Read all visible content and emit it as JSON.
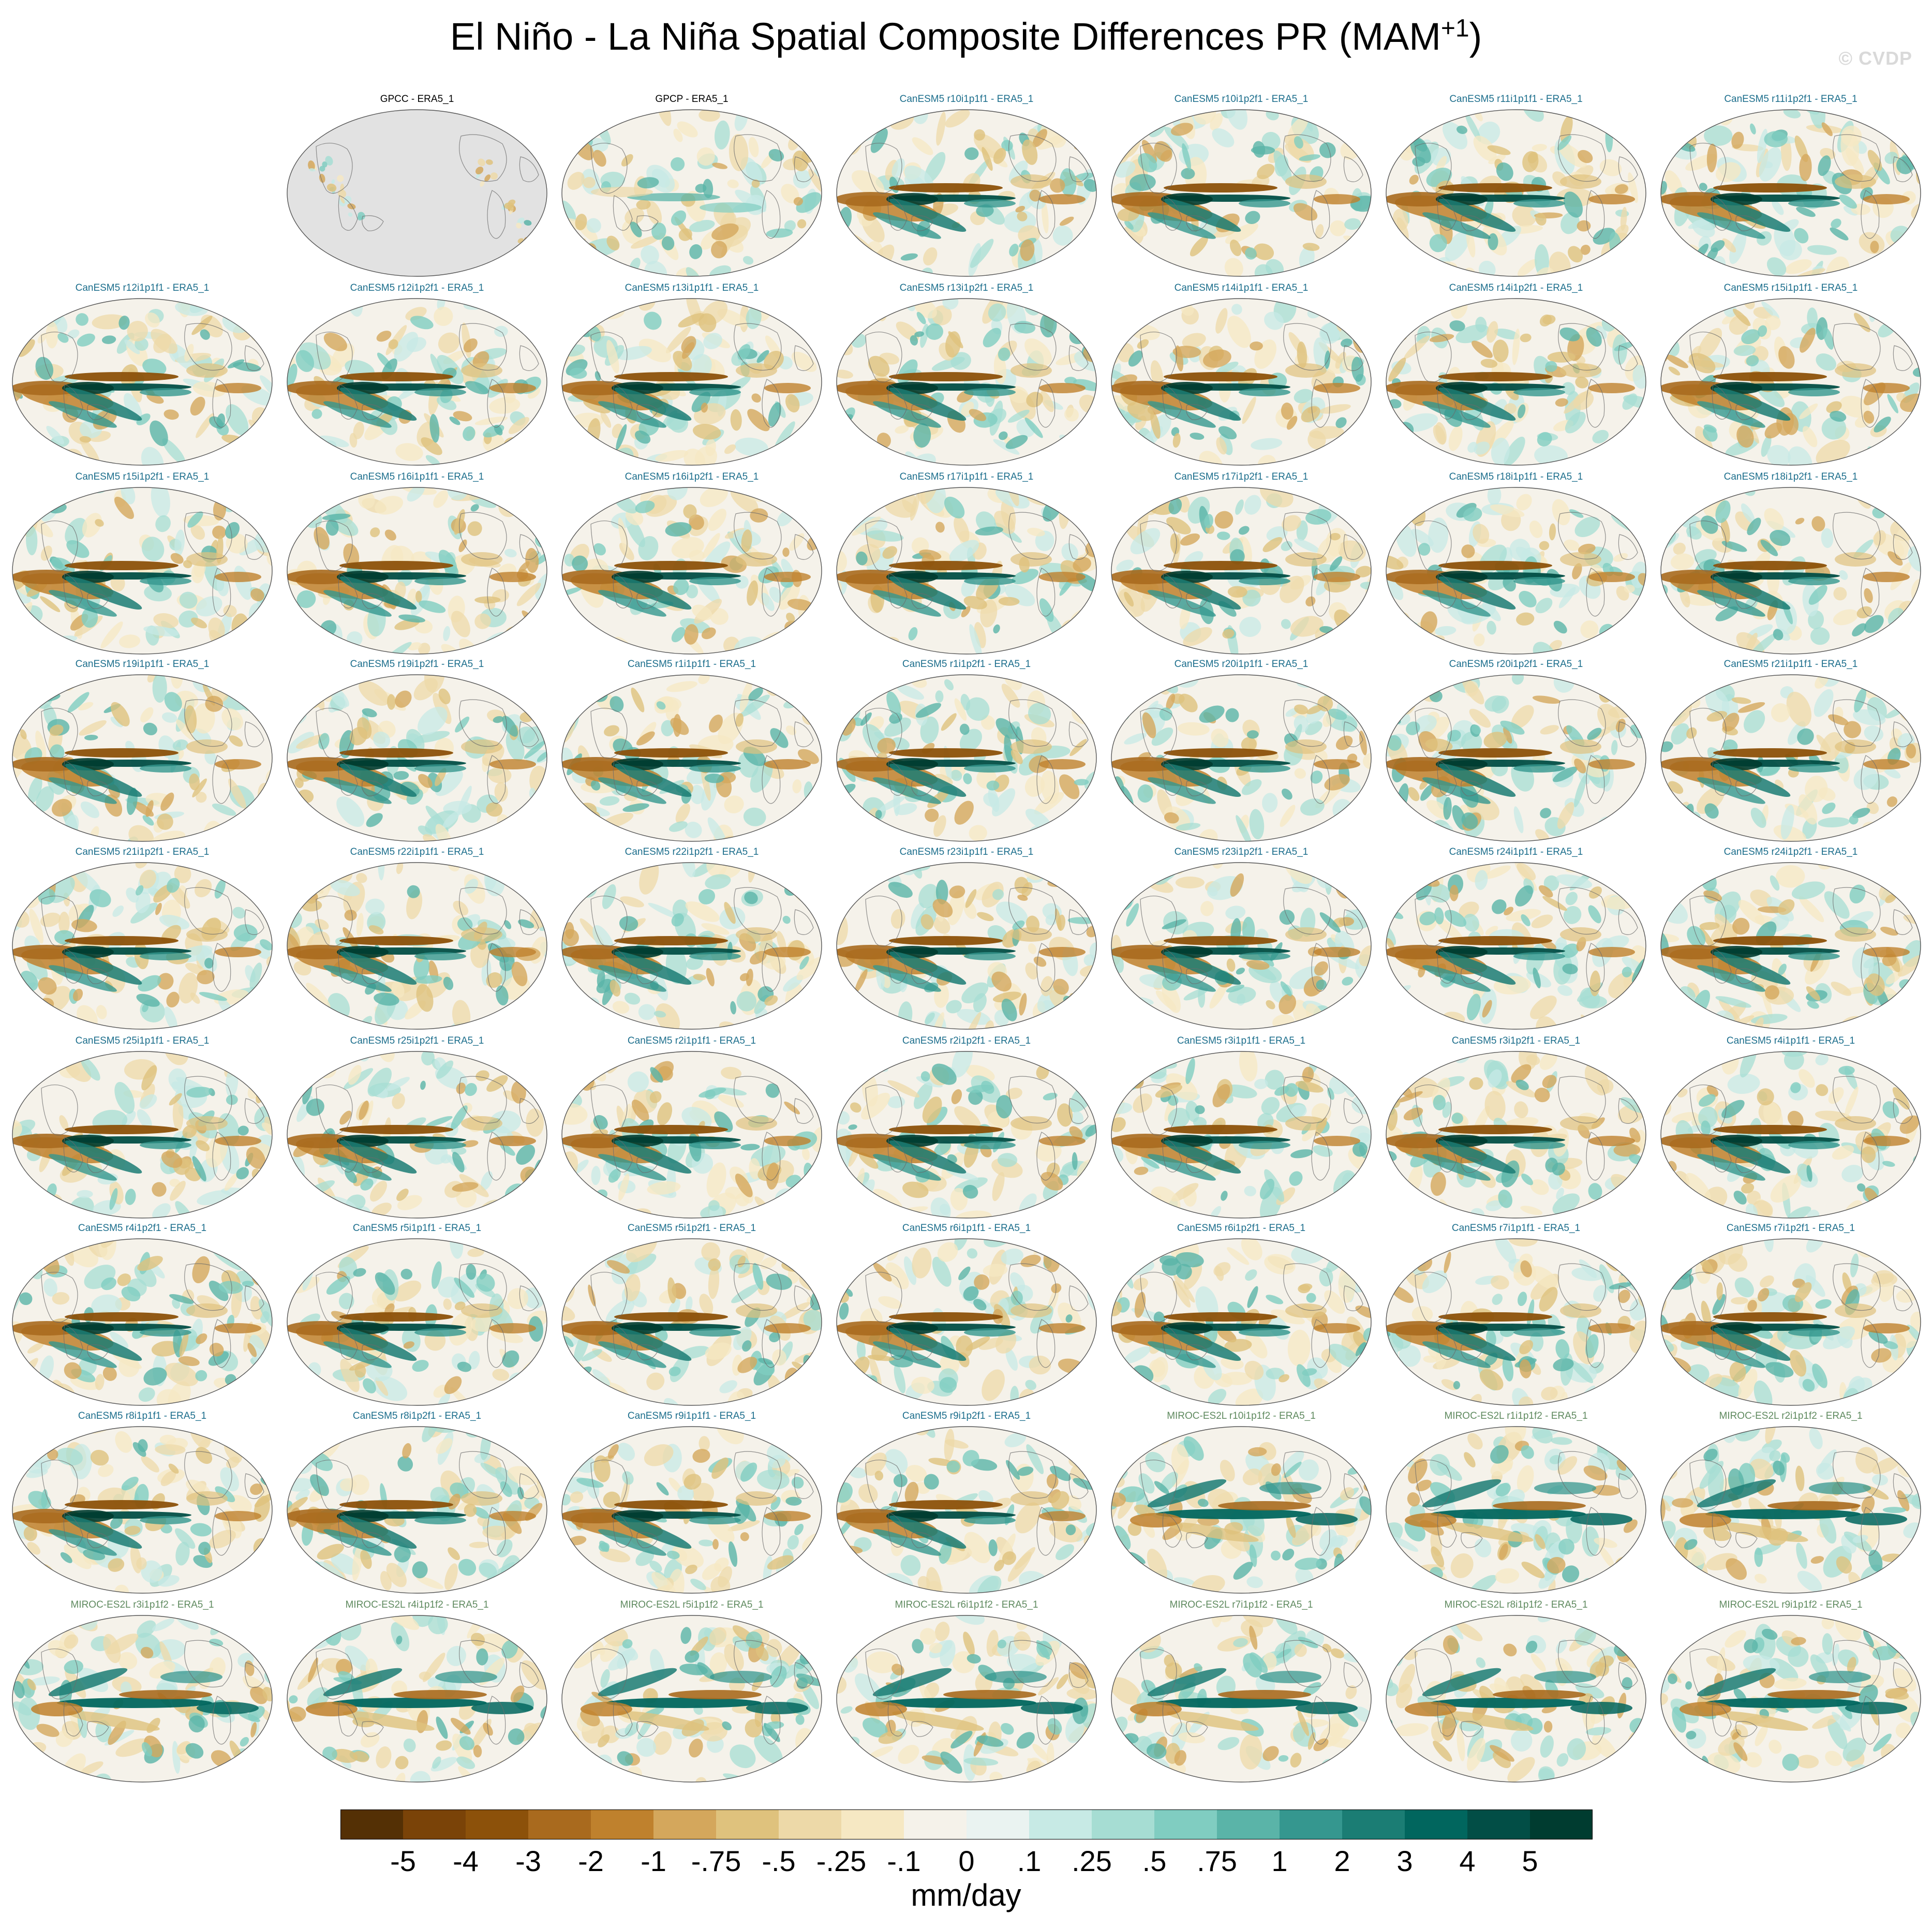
{
  "figure": {
    "title_main": "El Niño - La Niña Spatial Composite Differences PR (MAM",
    "title_sup": "+1",
    "title_close": ")",
    "watermark": "© CVDP"
  },
  "colors": {
    "obs_label": "#000000",
    "canesm_label": "#1c6e8c",
    "miroc_label": "#5f8a5f",
    "map_fill_obs_masked": "#e2e2e2",
    "coastline": "#6b6b6b",
    "palette": [
      "#543005",
      "#7a4308",
      "#8c510a",
      "#a96a1e",
      "#bf812d",
      "#d4a75c",
      "#dfc27d",
      "#edd9a8",
      "#f6e8c3",
      "#f5f2ea",
      "#eaf3f1",
      "#c7eae5",
      "#a6ddd3",
      "#80cdc1",
      "#5ab4a8",
      "#35978f",
      "#1b7d74",
      "#01665e",
      "#024e46",
      "#003c30"
    ]
  },
  "panels": [
    {
      "label": "GPCC - ERA5_1",
      "group": "obs",
      "kind": "gpcc",
      "seed": 1
    },
    {
      "label": "GPCP - ERA5_1",
      "group": "obs",
      "kind": "gpcp",
      "seed": 2
    },
    {
      "label": "CanESM5 r10i1p1f1 - ERA5_1",
      "group": "canesm",
      "kind": "canesm",
      "seed": 3
    },
    {
      "label": "CanESM5 r10i1p2f1 - ERA5_1",
      "group": "canesm",
      "kind": "canesm",
      "seed": 4
    },
    {
      "label": "CanESM5 r11i1p1f1 - ERA5_1",
      "group": "canesm",
      "kind": "canesm",
      "seed": 5
    },
    {
      "label": "CanESM5 r11i1p2f1 - ERA5_1",
      "group": "canesm",
      "kind": "canesm",
      "seed": 6
    },
    {
      "label": "CanESM5 r12i1p1f1 - ERA5_1",
      "group": "canesm",
      "kind": "canesm",
      "seed": 7
    },
    {
      "label": "CanESM5 r12i1p2f1 - ERA5_1",
      "group": "canesm",
      "kind": "canesm",
      "seed": 8
    },
    {
      "label": "CanESM5 r13i1p1f1 - ERA5_1",
      "group": "canesm",
      "kind": "canesm",
      "seed": 9
    },
    {
      "label": "CanESM5 r13i1p2f1 - ERA5_1",
      "group": "canesm",
      "kind": "canesm",
      "seed": 10
    },
    {
      "label": "CanESM5 r14i1p1f1 - ERA5_1",
      "group": "canesm",
      "kind": "canesm",
      "seed": 11
    },
    {
      "label": "CanESM5 r14i1p2f1 - ERA5_1",
      "group": "canesm",
      "kind": "canesm",
      "seed": 12
    },
    {
      "label": "CanESM5 r15i1p1f1 - ERA5_1",
      "group": "canesm",
      "kind": "canesm",
      "seed": 13
    },
    {
      "label": "CanESM5 r15i1p2f1 - ERA5_1",
      "group": "canesm",
      "kind": "canesm",
      "seed": 14
    },
    {
      "label": "CanESM5 r16i1p1f1 - ERA5_1",
      "group": "canesm",
      "kind": "canesm",
      "seed": 15
    },
    {
      "label": "CanESM5 r16i1p2f1 - ERA5_1",
      "group": "canesm",
      "kind": "canesm",
      "seed": 16
    },
    {
      "label": "CanESM5 r17i1p1f1 - ERA5_1",
      "group": "canesm",
      "kind": "canesm",
      "seed": 17
    },
    {
      "label": "CanESM5 r17i1p2f1 - ERA5_1",
      "group": "canesm",
      "kind": "canesm",
      "seed": 18
    },
    {
      "label": "CanESM5 r18i1p1f1 - ERA5_1",
      "group": "canesm",
      "kind": "canesm",
      "seed": 19
    },
    {
      "label": "CanESM5 r18i1p2f1 - ERA5_1",
      "group": "canesm",
      "kind": "canesm",
      "seed": 20
    },
    {
      "label": "CanESM5 r19i1p1f1 - ERA5_1",
      "group": "canesm",
      "kind": "canesm",
      "seed": 21
    },
    {
      "label": "CanESM5 r19i1p2f1 - ERA5_1",
      "group": "canesm",
      "kind": "canesm",
      "seed": 22
    },
    {
      "label": "CanESM5 r1i1p1f1 - ERA5_1",
      "group": "canesm",
      "kind": "canesm",
      "seed": 23
    },
    {
      "label": "CanESM5 r1i1p2f1 - ERA5_1",
      "group": "canesm",
      "kind": "canesm",
      "seed": 24
    },
    {
      "label": "CanESM5 r20i1p1f1 - ERA5_1",
      "group": "canesm",
      "kind": "canesm",
      "seed": 25
    },
    {
      "label": "CanESM5 r20i1p2f1 - ERA5_1",
      "group": "canesm",
      "kind": "canesm",
      "seed": 26
    },
    {
      "label": "CanESM5 r21i1p1f1 - ERA5_1",
      "group": "canesm",
      "kind": "canesm",
      "seed": 27
    },
    {
      "label": "CanESM5 r21i1p2f1 - ERA5_1",
      "group": "canesm",
      "kind": "canesm",
      "seed": 28
    },
    {
      "label": "CanESM5 r22i1p1f1 - ERA5_1",
      "group": "canesm",
      "kind": "canesm",
      "seed": 29
    },
    {
      "label": "CanESM5 r22i1p2f1 - ERA5_1",
      "group": "canesm",
      "kind": "canesm",
      "seed": 30
    },
    {
      "label": "CanESM5 r23i1p1f1 - ERA5_1",
      "group": "canesm",
      "kind": "canesm",
      "seed": 31
    },
    {
      "label": "CanESM5 r23i1p2f1 - ERA5_1",
      "group": "canesm",
      "kind": "canesm",
      "seed": 32
    },
    {
      "label": "CanESM5 r24i1p1f1 - ERA5_1",
      "group": "canesm",
      "kind": "canesm",
      "seed": 33
    },
    {
      "label": "CanESM5 r24i1p2f1 - ERA5_1",
      "group": "canesm",
      "kind": "canesm",
      "seed": 34
    },
    {
      "label": "CanESM5 r25i1p1f1 - ERA5_1",
      "group": "canesm",
      "kind": "canesm",
      "seed": 35
    },
    {
      "label": "CanESM5 r25i1p2f1 - ERA5_1",
      "group": "canesm",
      "kind": "canesm",
      "seed": 36
    },
    {
      "label": "CanESM5 r2i1p1f1 - ERA5_1",
      "group": "canesm",
      "kind": "canesm",
      "seed": 37
    },
    {
      "label": "CanESM5 r2i1p2f1 - ERA5_1",
      "group": "canesm",
      "kind": "canesm",
      "seed": 38
    },
    {
      "label": "CanESM5 r3i1p1f1 - ERA5_1",
      "group": "canesm",
      "kind": "canesm",
      "seed": 39
    },
    {
      "label": "CanESM5 r3i1p2f1 - ERA5_1",
      "group": "canesm",
      "kind": "canesm",
      "seed": 40
    },
    {
      "label": "CanESM5 r4i1p1f1 - ERA5_1",
      "group": "canesm",
      "kind": "canesm",
      "seed": 41
    },
    {
      "label": "CanESM5 r4i1p2f1 - ERA5_1",
      "group": "canesm",
      "kind": "canesm",
      "seed": 42
    },
    {
      "label": "CanESM5 r5i1p1f1 - ERA5_1",
      "group": "canesm",
      "kind": "canesm",
      "seed": 43
    },
    {
      "label": "CanESM5 r5i1p2f1 - ERA5_1",
      "group": "canesm",
      "kind": "canesm",
      "seed": 44
    },
    {
      "label": "CanESM5 r6i1p1f1 - ERA5_1",
      "group": "canesm",
      "kind": "canesm",
      "seed": 45
    },
    {
      "label": "CanESM5 r6i1p2f1 - ERA5_1",
      "group": "canesm",
      "kind": "canesm",
      "seed": 46
    },
    {
      "label": "CanESM5 r7i1p1f1 - ERA5_1",
      "group": "canesm",
      "kind": "canesm",
      "seed": 47
    },
    {
      "label": "CanESM5 r7i1p2f1 - ERA5_1",
      "group": "canesm",
      "kind": "canesm",
      "seed": 48
    },
    {
      "label": "CanESM5 r8i1p1f1 - ERA5_1",
      "group": "canesm",
      "kind": "canesm",
      "seed": 49
    },
    {
      "label": "CanESM5 r8i1p2f1 - ERA5_1",
      "group": "canesm",
      "kind": "canesm",
      "seed": 50
    },
    {
      "label": "CanESM5 r9i1p1f1 - ERA5_1",
      "group": "canesm",
      "kind": "canesm",
      "seed": 51
    },
    {
      "label": "CanESM5 r9i1p2f1 - ERA5_1",
      "group": "canesm",
      "kind": "canesm",
      "seed": 52
    },
    {
      "label": "MIROC-ES2L r10i1p1f2 - ERA5_1",
      "group": "miroc",
      "kind": "miroc",
      "seed": 53
    },
    {
      "label": "MIROC-ES2L r1i1p1f2 - ERA5_1",
      "group": "miroc",
      "kind": "miroc",
      "seed": 54
    },
    {
      "label": "MIROC-ES2L r2i1p1f2 - ERA5_1",
      "group": "miroc",
      "kind": "miroc",
      "seed": 55
    },
    {
      "label": "MIROC-ES2L r3i1p1f2 - ERA5_1",
      "group": "miroc",
      "kind": "miroc",
      "seed": 56
    },
    {
      "label": "MIROC-ES2L r4i1p1f2 - ERA5_1",
      "group": "miroc",
      "kind": "miroc",
      "seed": 57
    },
    {
      "label": "MIROC-ES2L r5i1p1f2 - ERA5_1",
      "group": "miroc",
      "kind": "miroc",
      "seed": 58
    },
    {
      "label": "MIROC-ES2L r6i1p1f2 - ERA5_1",
      "group": "miroc",
      "kind": "miroc",
      "seed": 59
    },
    {
      "label": "MIROC-ES2L r7i1p1f2 - ERA5_1",
      "group": "miroc",
      "kind": "miroc",
      "seed": 60
    },
    {
      "label": "MIROC-ES2L r8i1p1f2 - ERA5_1",
      "group": "miroc",
      "kind": "miroc",
      "seed": 61
    },
    {
      "label": "MIROC-ES2L r9i1p1f2 - ERA5_1",
      "group": "miroc",
      "kind": "miroc",
      "seed": 62
    }
  ],
  "colorbar": {
    "tick_labels": [
      "-5",
      "-4",
      "-3",
      "-2",
      "-1",
      "-.75",
      "-.5",
      "-.25",
      "-.1",
      "0",
      ".1",
      ".25",
      ".5",
      ".75",
      "1",
      "2",
      "3",
      "4",
      "5"
    ],
    "units": "mm/day"
  }
}
